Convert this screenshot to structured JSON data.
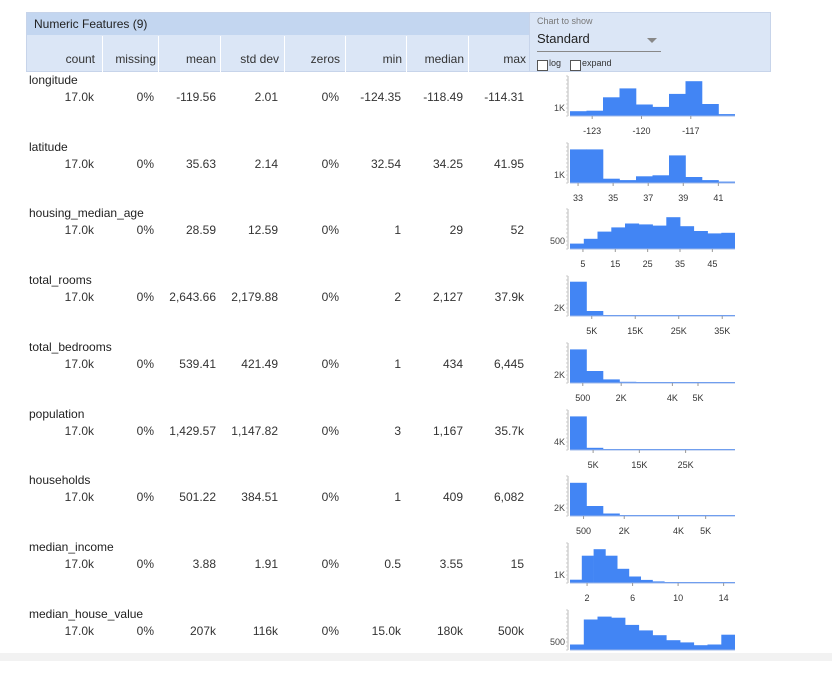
{
  "header": {
    "title": "Numeric Features (9)",
    "columns": [
      "count",
      "missing",
      "mean",
      "std dev",
      "zeros",
      "min",
      "median",
      "max"
    ],
    "chart_to_show_label": "Chart to show",
    "chart_select_value": "Standard",
    "log_label": "log",
    "expand_label": "expand"
  },
  "features": [
    {
      "name": "longitude",
      "count": "17.0k",
      "missing": "0%",
      "mean": "-119.56",
      "std_dev": "2.01",
      "zeros": "0%",
      "min": "-124.35",
      "median": "-118.49",
      "max": "-114.31",
      "y_label": "1K"
    },
    {
      "name": "latitude",
      "count": "17.0k",
      "missing": "0%",
      "mean": "35.63",
      "std_dev": "2.14",
      "zeros": "0%",
      "min": "32.54",
      "median": "34.25",
      "max": "41.95",
      "y_label": "1K"
    },
    {
      "name": "housing_median_age",
      "count": "17.0k",
      "missing": "0%",
      "mean": "28.59",
      "std_dev": "12.59",
      "zeros": "0%",
      "min": "1",
      "median": "29",
      "max": "52",
      "y_label": "500"
    },
    {
      "name": "total_rooms",
      "count": "17.0k",
      "missing": "0%",
      "mean": "2,643.66",
      "std_dev": "2,179.88",
      "zeros": "0%",
      "min": "2",
      "median": "2,127",
      "max": "37.9k",
      "y_label": "2K"
    },
    {
      "name": "total_bedrooms",
      "count": "17.0k",
      "missing": "0%",
      "mean": "539.41",
      "std_dev": "421.49",
      "zeros": "0%",
      "min": "1",
      "median": "434",
      "max": "6,445",
      "y_label": "2K"
    },
    {
      "name": "population",
      "count": "17.0k",
      "missing": "0%",
      "mean": "1,429.57",
      "std_dev": "1,147.82",
      "zeros": "0%",
      "min": "3",
      "median": "1,167",
      "max": "35.7k",
      "y_label": "4K"
    },
    {
      "name": "households",
      "count": "17.0k",
      "missing": "0%",
      "mean": "501.22",
      "std_dev": "384.51",
      "zeros": "0%",
      "min": "1",
      "median": "409",
      "max": "6,082",
      "y_label": "2K"
    },
    {
      "name": "median_income",
      "count": "17.0k",
      "missing": "0%",
      "mean": "3.88",
      "std_dev": "1.91",
      "zeros": "0%",
      "min": "0.5",
      "median": "3.55",
      "max": "15",
      "y_label": "1K"
    },
    {
      "name": "median_house_value",
      "count": "17.0k",
      "missing": "0%",
      "mean": "207k",
      "std_dev": "116k",
      "zeros": "0%",
      "min": "15.0k",
      "median": "180k",
      "max": "500k",
      "y_label": "500"
    }
  ],
  "chart_data": [
    {
      "type": "bar",
      "feature": "longitude",
      "range": [
        -124.35,
        -114.31
      ],
      "values": [
        200,
        220,
        780,
        1150,
        480,
        380,
        920,
        1450,
        500,
        80
      ],
      "ylim": [
        0,
        1500
      ],
      "x_ticks": [
        {
          "value": -123,
          "label": "-123"
        },
        {
          "value": -120,
          "label": "-120"
        },
        {
          "value": -117,
          "label": "-117"
        }
      ]
    },
    {
      "type": "bar",
      "feature": "latitude",
      "range": [
        32.54,
        41.95
      ],
      "values": [
        1400,
        1400,
        180,
        120,
        280,
        320,
        1150,
        250,
        120,
        60
      ],
      "ylim": [
        0,
        1500
      ],
      "x_ticks": [
        {
          "value": 33,
          "label": "33"
        },
        {
          "value": 35,
          "label": "35"
        },
        {
          "value": 37,
          "label": "37"
        },
        {
          "value": 39,
          "label": "39"
        },
        {
          "value": 41,
          "label": "41"
        }
      ]
    },
    {
      "type": "bar",
      "feature": "housing_median_age",
      "range": [
        1,
        52
      ],
      "values": [
        180,
        340,
        580,
        720,
        850,
        820,
        780,
        1060,
        760,
        600,
        520,
        540
      ],
      "ylim": [
        0,
        1200
      ],
      "x_ticks": [
        {
          "value": 5,
          "label": "5"
        },
        {
          "value": 15,
          "label": "15"
        },
        {
          "value": 25,
          "label": "25"
        },
        {
          "value": 35,
          "label": "35"
        },
        {
          "value": 45,
          "label": "45"
        }
      ]
    },
    {
      "type": "bar",
      "feature": "total_rooms",
      "range": [
        2,
        37937
      ],
      "values": [
        6200,
        900,
        110,
        40,
        15,
        8,
        5,
        3,
        2,
        1
      ],
      "ylim": [
        0,
        6500
      ],
      "x_ticks": [
        {
          "value": 5000,
          "label": "5K"
        },
        {
          "value": 15000,
          "label": "15K"
        },
        {
          "value": 25000,
          "label": "25K"
        },
        {
          "value": 35000,
          "label": "35K"
        }
      ]
    },
    {
      "type": "bar",
      "feature": "total_bedrooms",
      "range": [
        1,
        6445
      ],
      "values": [
        5600,
        2000,
        600,
        200,
        80,
        30,
        12,
        6,
        3,
        1
      ],
      "ylim": [
        0,
        6000
      ],
      "x_ticks": [
        {
          "value": 500,
          "label": "500"
        },
        {
          "value": 2000,
          "label": "2K"
        },
        {
          "value": 4000,
          "label": "4K"
        },
        {
          "value": 5000,
          "label": "5K"
        }
      ]
    },
    {
      "type": "bar",
      "feature": "population",
      "range": [
        3,
        35682
      ],
      "values": [
        14000,
        900,
        50,
        10,
        5,
        2,
        1,
        1,
        1,
        1
      ],
      "ylim": [
        0,
        15000
      ],
      "x_ticks": [
        {
          "value": 5000,
          "label": "5K"
        },
        {
          "value": 15000,
          "label": "15K"
        },
        {
          "value": 25000,
          "label": "25K"
        }
      ]
    },
    {
      "type": "bar",
      "feature": "households",
      "range": [
        1,
        6082
      ],
      "values": [
        6000,
        1800,
        450,
        140,
        50,
        20,
        8,
        4,
        2,
        1
      ],
      "ylim": [
        0,
        6500
      ],
      "x_ticks": [
        {
          "value": 500,
          "label": "500"
        },
        {
          "value": 2000,
          "label": "2K"
        },
        {
          "value": 4000,
          "label": "4K"
        },
        {
          "value": 5000,
          "label": "5K"
        }
      ]
    },
    {
      "type": "bar",
      "feature": "median_income",
      "range": [
        0.5,
        15
      ],
      "values": [
        300,
        2500,
        3100,
        2500,
        1300,
        600,
        280,
        150,
        60,
        40,
        30,
        20,
        15,
        10
      ],
      "ylim": [
        0,
        3300
      ],
      "x_ticks": [
        {
          "value": 2,
          "label": "2"
        },
        {
          "value": 6,
          "label": "6"
        },
        {
          "value": 10,
          "label": "10"
        },
        {
          "value": 14,
          "label": "14"
        }
      ]
    },
    {
      "type": "bar",
      "feature": "median_house_value",
      "range": [
        14999,
        500001
      ],
      "values": [
        250,
        1400,
        1530,
        1480,
        1150,
        900,
        680,
        450,
        350,
        220,
        250,
        700
      ],
      "ylim": [
        0,
        1650
      ],
      "x_ticks": []
    }
  ]
}
